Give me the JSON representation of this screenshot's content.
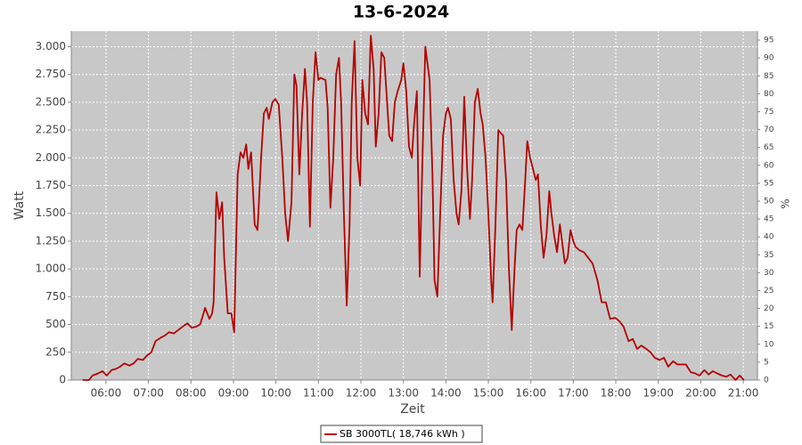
{
  "chart_data": {
    "type": "line",
    "title": "13-6-2024",
    "x_label": "Zeit",
    "y_label": "Watt",
    "y2_label": "%",
    "x": [
      "05:27",
      "05:36",
      "05:41",
      "05:49",
      "05:55",
      "06:01",
      "06:08",
      "06:14",
      "06:20",
      "06:26",
      "06:33",
      "06:39",
      "06:45",
      "06:52",
      "06:58",
      "07:04",
      "07:10",
      "07:17",
      "07:23",
      "07:29",
      "07:36",
      "07:42",
      "07:48",
      "07:55",
      "08:01",
      "08:07",
      "08:13",
      "08:20",
      "08:26",
      "08:30",
      "08:32",
      "08:36",
      "08:40",
      "08:44",
      "08:47",
      "08:52",
      "08:57",
      "09:01",
      "09:06",
      "09:10",
      "09:14",
      "09:18",
      "09:21",
      "09:25",
      "09:30",
      "09:34",
      "09:39",
      "09:43",
      "09:47",
      "09:50",
      "09:55",
      "09:59",
      "10:04",
      "10:09",
      "10:13",
      "10:17",
      "10:22",
      "10:26",
      "10:29",
      "10:33",
      "10:37",
      "10:41",
      "10:44",
      "10:48",
      "10:52",
      "10:56",
      "11:00",
      "11:03",
      "11:10",
      "11:13",
      "11:17",
      "11:21",
      "11:25",
      "11:29",
      "11:32",
      "11:36",
      "11:40",
      "11:44",
      "11:47",
      "11:51",
      "11:55",
      "11:59",
      "12:02",
      "12:06",
      "12:10",
      "12:14",
      "12:18",
      "12:21",
      "12:25",
      "12:29",
      "12:33",
      "12:36",
      "12:40",
      "12:44",
      "12:48",
      "12:52",
      "12:57",
      "13:00",
      "13:04",
      "13:08",
      "13:12",
      "13:15",
      "13:19",
      "13:23",
      "13:27",
      "13:31",
      "13:34",
      "13:37",
      "13:41",
      "13:44",
      "13:48",
      "13:52",
      "13:56",
      "14:00",
      "14:03",
      "14:07",
      "14:11",
      "14:15",
      "14:18",
      "14:22",
      "14:26",
      "14:30",
      "14:34",
      "14:37",
      "14:41",
      "14:45",
      "14:49",
      "14:52",
      "14:56",
      "15:00",
      "15:04",
      "15:06",
      "15:10",
      "15:14",
      "15:18",
      "15:21",
      "15:25",
      "15:29",
      "15:33",
      "15:37",
      "15:40",
      "15:44",
      "15:48",
      "15:52",
      "15:55",
      "15:59",
      "16:03",
      "16:07",
      "16:10",
      "16:14",
      "16:18",
      "16:22",
      "16:26",
      "16:29",
      "16:33",
      "16:37",
      "16:41",
      "16:44",
      "16:48",
      "16:52",
      "16:56",
      "17:00",
      "17:03",
      "17:08",
      "17:15",
      "17:21",
      "17:27",
      "17:34",
      "17:40",
      "17:46",
      "17:52",
      "17:59",
      "18:05",
      "18:11",
      "18:18",
      "18:24",
      "18:30",
      "18:36",
      "18:43",
      "18:49",
      "18:55",
      "19:02",
      "19:08",
      "19:14",
      "19:21",
      "19:27",
      "19:33",
      "19:39",
      "19:46",
      "19:52",
      "19:58",
      "20:05",
      "20:11",
      "20:17",
      "20:23",
      "20:30",
      "20:36",
      "20:42",
      "20:49",
      "20:55",
      "21:01"
    ],
    "series": [
      {
        "name": "SB 3000TL( 18,746 kWh )",
        "color": "#b40000",
        "values": [
          0,
          0,
          40,
          60,
          80,
          40,
          90,
          100,
          120,
          150,
          130,
          150,
          190,
          180,
          220,
          250,
          350,
          380,
          400,
          430,
          420,
          450,
          480,
          510,
          470,
          480,
          500,
          650,
          550,
          600,
          700,
          1690,
          1450,
          1600,
          1100,
          600,
          600,
          430,
          1850,
          2050,
          2000,
          2120,
          1900,
          2050,
          1400,
          1350,
          2000,
          2400,
          2450,
          2350,
          2500,
          2530,
          2480,
          2000,
          1500,
          1250,
          1600,
          2750,
          2650,
          1850,
          2400,
          2800,
          2500,
          1380,
          2500,
          2950,
          2700,
          2720,
          2700,
          2450,
          1550,
          2000,
          2750,
          2900,
          2500,
          1500,
          670,
          1400,
          2500,
          3050,
          2000,
          1750,
          2700,
          2400,
          2300,
          3100,
          2800,
          2100,
          2400,
          2950,
          2900,
          2600,
          2200,
          2150,
          2500,
          2600,
          2700,
          2850,
          2600,
          2100,
          2000,
          2300,
          2600,
          930,
          2000,
          3000,
          2850,
          2700,
          1850,
          900,
          750,
          1500,
          2200,
          2400,
          2450,
          2350,
          1800,
          1500,
          1400,
          1700,
          2550,
          1900,
          1450,
          1800,
          2500,
          2620,
          2400,
          2300,
          2000,
          1500,
          900,
          700,
          1400,
          2250,
          2220,
          2200,
          1800,
          1000,
          450,
          1000,
          1350,
          1400,
          1350,
          1800,
          2150,
          2000,
          1900,
          1800,
          1850,
          1400,
          1100,
          1300,
          1700,
          1500,
          1300,
          1150,
          1400,
          1250,
          1050,
          1100,
          1350,
          1250,
          1200,
          1170,
          1150,
          1100,
          1050,
          900,
          700,
          700,
          550,
          560,
          530,
          480,
          350,
          370,
          280,
          310,
          280,
          250,
          200,
          180,
          200,
          120,
          170,
          140,
          140,
          140,
          70,
          60,
          40,
          90,
          50,
          80,
          60,
          40,
          30,
          50,
          0,
          40,
          0
        ]
      }
    ],
    "xlim": [
      "05:11",
      "21:20"
    ],
    "xticks": [
      "06:00",
      "07:00",
      "08:00",
      "09:00",
      "10:00",
      "11:00",
      "12:00",
      "13:00",
      "14:00",
      "15:00",
      "16:00",
      "17:00",
      "18:00",
      "19:00",
      "20:00",
      "21:00"
    ],
    "ylim": [
      0,
      3140
    ],
    "yticks": [
      0,
      250,
      500,
      750,
      {
        "value": 1000,
        "label": "1.000"
      },
      {
        "value": 1250,
        "label": "1.250"
      },
      {
        "value": 1500,
        "label": "1.500"
      },
      {
        "value": 1750,
        "label": "1.750"
      },
      {
        "value": 2000,
        "label": "2.000"
      },
      {
        "value": 2250,
        "label": "2.250"
      },
      {
        "value": 2500,
        "label": "2.500"
      },
      {
        "value": 2750,
        "label": "2.750"
      },
      {
        "value": 3000,
        "label": "3.000"
      }
    ],
    "y2lim": [
      0,
      97.5
    ],
    "y2ticks": [
      0,
      5,
      10,
      15,
      20,
      25,
      30,
      35,
      40,
      45,
      50,
      55,
      60,
      65,
      70,
      75,
      80,
      85,
      90,
      95
    ],
    "grid": true,
    "legend": "bottom"
  }
}
